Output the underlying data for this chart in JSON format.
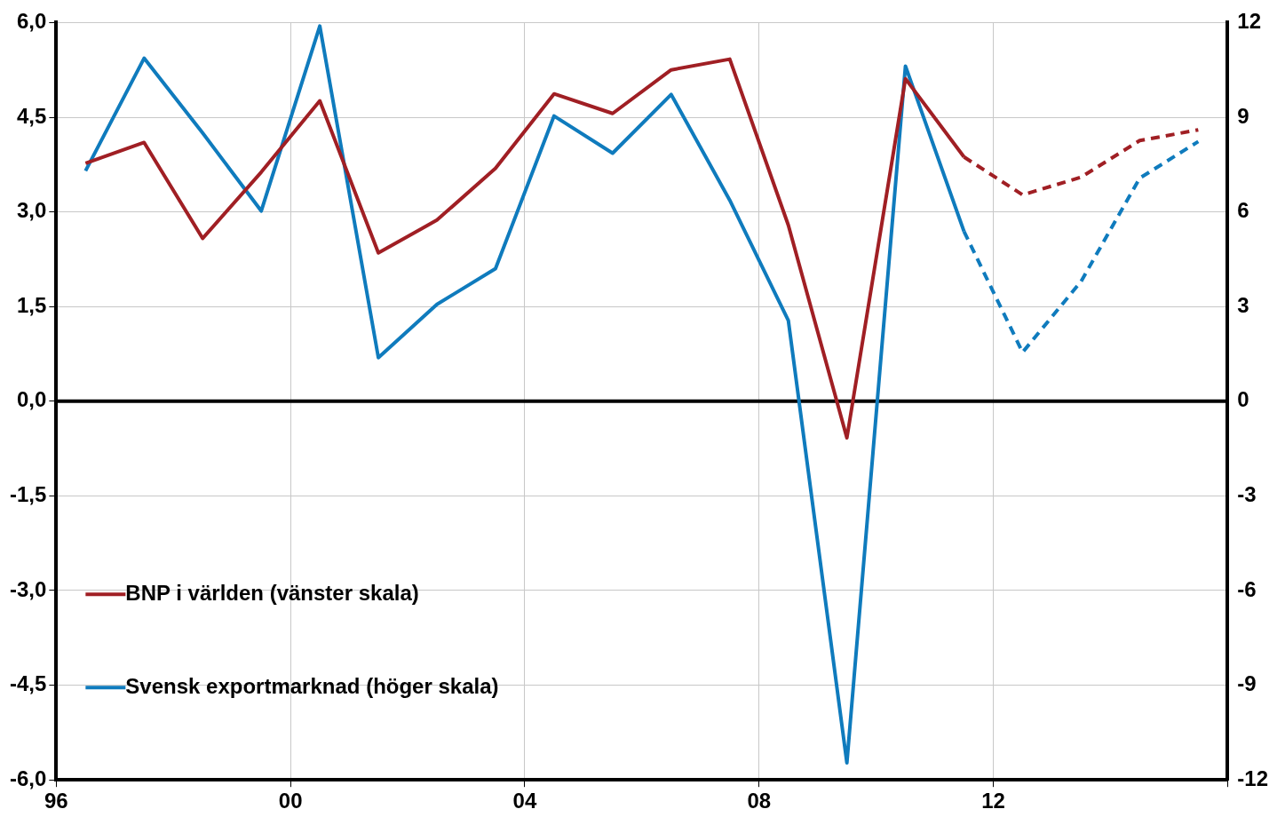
{
  "chart_data": {
    "type": "line",
    "xlim": [
      1996,
      2016
    ],
    "xticks": [
      {
        "value": 1996,
        "label": "96"
      },
      {
        "value": 2000,
        "label": "00"
      },
      {
        "value": 2004,
        "label": "04"
      },
      {
        "value": 2008,
        "label": "08"
      },
      {
        "value": 2012,
        "label": "12"
      },
      {
        "value": 2016,
        "label": null
      }
    ],
    "ylim": [
      -6,
      6
    ],
    "yticks": [
      {
        "value": -6,
        "label": "-6,0"
      },
      {
        "value": -4.5,
        "label": "-4,5"
      },
      {
        "value": -3,
        "label": "-3,0"
      },
      {
        "value": -1.5,
        "label": "-1,5"
      },
      {
        "value": 0,
        "label": "0,0"
      },
      {
        "value": 1.5,
        "label": "1,5"
      },
      {
        "value": 3,
        "label": "3,0"
      },
      {
        "value": 4.5,
        "label": "4,5"
      },
      {
        "value": 6,
        "label": "6,0"
      }
    ],
    "y2lim": [
      -12,
      12
    ],
    "y2ticks": [
      -12,
      -9,
      -6,
      -3,
      0,
      3,
      6,
      9,
      12
    ],
    "grid": true,
    "legend": "bottom left",
    "marker": "none",
    "series": [
      {
        "name": "BNP i världen (vänster skala)",
        "color": "#a01f24",
        "line_style": "solid",
        "x": [
          1996.5,
          1997.5,
          1998.5,
          1999.5,
          2000.5,
          2001.5,
          2002.5,
          2003.5,
          2004.5,
          2005.5,
          2006.5,
          2007.5,
          2008.5,
          2009.5,
          2010.5,
          2011.5
        ],
        "values": [
          3.77,
          4.1,
          2.58,
          3.63,
          4.76,
          2.35,
          2.87,
          3.69,
          4.87,
          4.56,
          5.25,
          5.42,
          2.79,
          -0.58,
          5.11,
          3.87
        ]
      },
      {
        "color": "#a01f24",
        "line_style": "dashed",
        "x": [
          2011.5,
          2012.5,
          2013.5,
          2014.5,
          2015.5
        ],
        "values": [
          3.87,
          3.27,
          3.55,
          4.13,
          4.3
        ]
      },
      {
        "name": "Svensk exportmarknad (höger skala)",
        "color": "#0f7bbd",
        "axis": "y2",
        "line_style": "solid",
        "x": [
          1996.5,
          1997.5,
          1998.5,
          1999.5,
          2000.5,
          2001.5,
          2002.5,
          2003.5,
          2004.5,
          2005.5,
          2006.5,
          2007.5,
          2008.5,
          2009.5,
          2010.5,
          2011.5
        ],
        "values": [
          7.3,
          10.87,
          8.5,
          6.03,
          11.89,
          1.38,
          3.07,
          4.2,
          9.04,
          7.86,
          9.72,
          6.37,
          2.56,
          -11.46,
          10.62,
          5.38
        ]
      },
      {
        "color": "#0f7bbd",
        "axis": "y2",
        "line_style": "dashed",
        "x": [
          2011.5,
          2012.5,
          2013.5,
          2014.5,
          2015.5
        ],
        "values": [
          5.38,
          1.55,
          3.8,
          7.07,
          8.23
        ]
      }
    ]
  }
}
